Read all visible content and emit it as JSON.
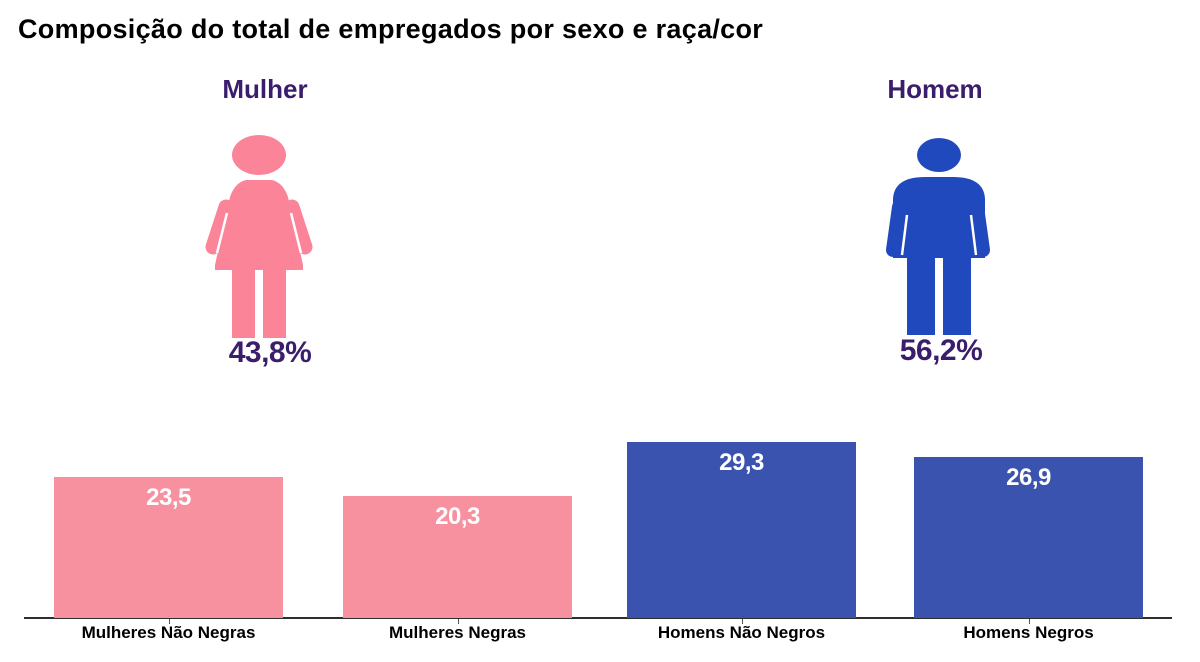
{
  "title": "Composição do total de empregados por sexo e raça/cor",
  "pictograms": [
    {
      "label": "Mulher",
      "percent": "43,8%",
      "icon": "woman-icon",
      "color": "#FB8498"
    },
    {
      "label": "Homem",
      "percent": "56,2%",
      "icon": "man-icon",
      "color": "#2149BE"
    }
  ],
  "colors": {
    "pink_icon": "#FB8498",
    "blue_icon": "#2149BE",
    "pink_bar": "#F7909F",
    "blue_bar": "#3A53AE",
    "purple": "#3A1E6B",
    "axis": "#2e2e2e"
  },
  "chart_data": {
    "type": "bar",
    "title": "Composição do total de empregados por sexo e raça/cor",
    "categories": [
      "Mulheres Não Negras",
      "Mulheres Negras",
      "Homens Não Negros",
      "Homens Negros"
    ],
    "values": [
      23.5,
      20.3,
      29.3,
      26.9
    ],
    "value_labels": [
      "23,5",
      "20,3",
      "29,3",
      "26,9"
    ],
    "bar_colors": [
      "#F7909F",
      "#F7909F",
      "#3A53AE",
      "#3A53AE"
    ],
    "group_percents": {
      "Mulher": 43.8,
      "Homem": 56.2
    },
    "xlabel": "",
    "ylabel": "",
    "ylim": [
      0,
      31
    ],
    "grid": false,
    "legend_position": "none",
    "value_labels_inside_bars": true
  }
}
